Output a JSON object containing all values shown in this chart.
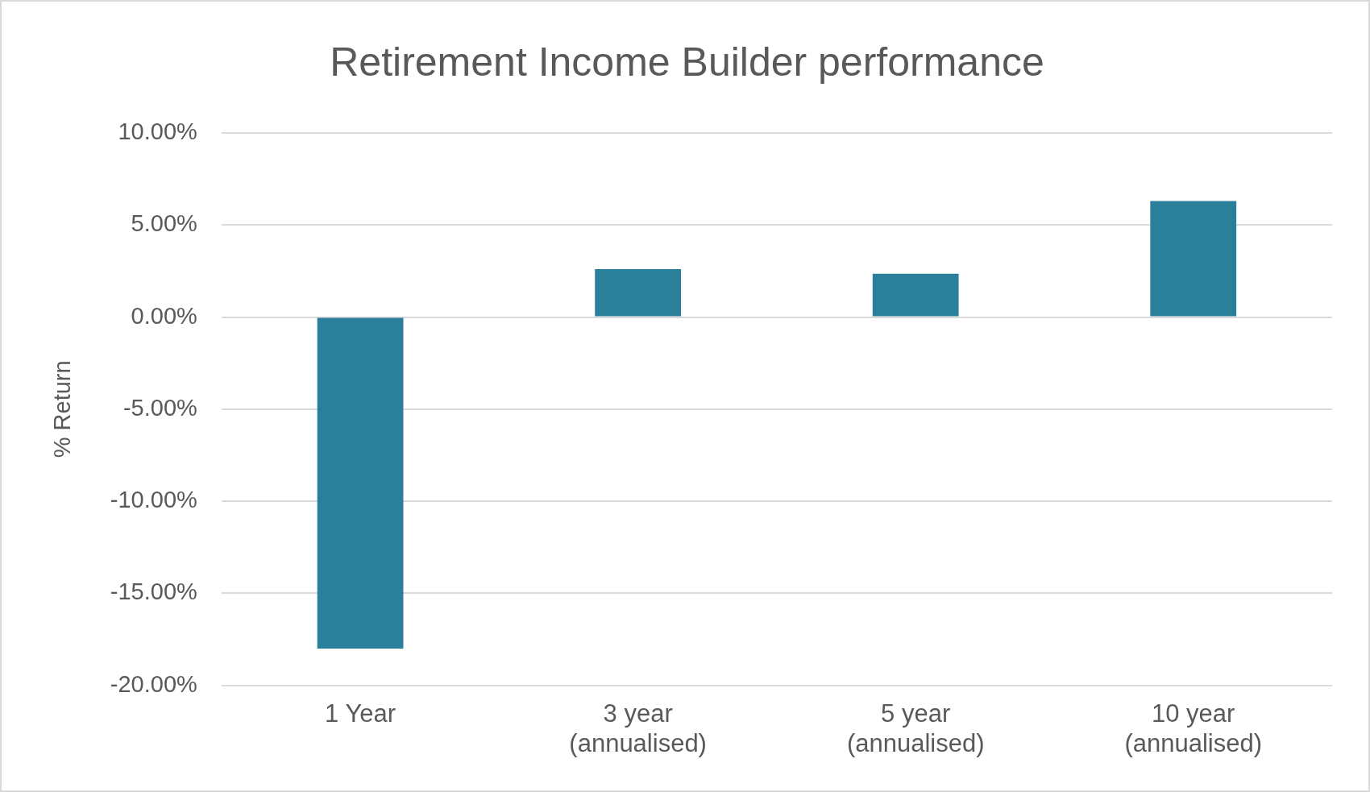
{
  "chart_data": {
    "type": "bar",
    "title": "Retirement Income Builder performance",
    "ylabel": "% Return",
    "categories": [
      "1 Year",
      "3 year (annualised)",
      "5 year (annualised)",
      "10 year (annualised)"
    ],
    "values": [
      -18.0,
      2.6,
      2.35,
      6.3
    ],
    "color": "#2a7f9a",
    "ylim": [
      -20,
      10
    ],
    "yticks": [
      {
        "value": -20,
        "label": "-20.00%"
      },
      {
        "value": -15,
        "label": "-15.00%"
      },
      {
        "value": -10,
        "label": "-10.00%"
      },
      {
        "value": -5,
        "label": "-5.00%"
      },
      {
        "value": 0,
        "label": "0.00%"
      },
      {
        "value": 5,
        "label": "5.00%"
      },
      {
        "value": 10,
        "label": "10.00%"
      }
    ],
    "grid": "y",
    "legend": false
  }
}
